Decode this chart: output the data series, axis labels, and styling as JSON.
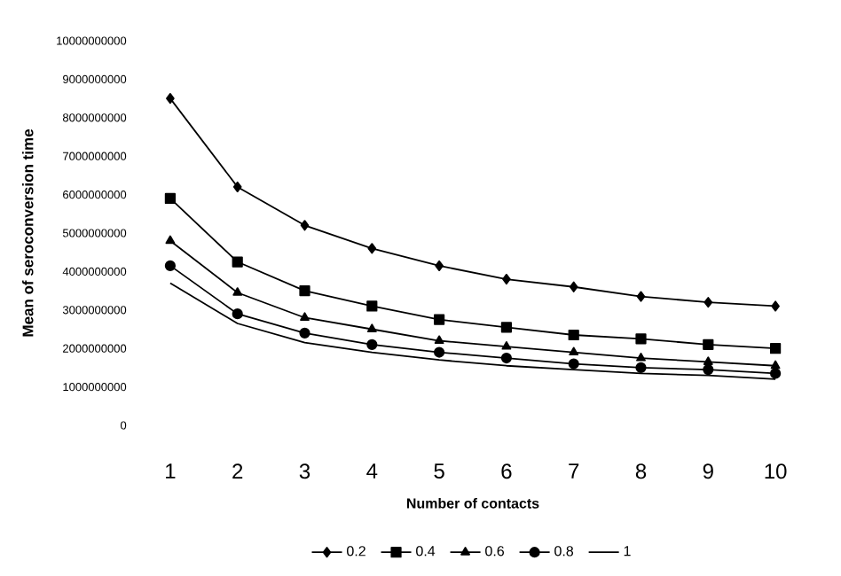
{
  "chart_data": {
    "type": "line",
    "xlabel": "Number of contacts",
    "ylabel": "Mean of seroconversion time",
    "categories": [
      "1",
      "2",
      "3",
      "4",
      "5",
      "6",
      "7",
      "8",
      "9",
      "10"
    ],
    "series": [
      {
        "name": "0.2",
        "color": "#000000",
        "marker": "diamond",
        "values": [
          8500000000,
          6200000000,
          5200000000,
          4600000000,
          4150000000,
          3800000000,
          3600000000,
          3350000000,
          3200000000,
          3100000000
        ]
      },
      {
        "name": "0.4",
        "color": "#000000",
        "marker": "square",
        "values": [
          5900000000,
          4250000000,
          3500000000,
          3100000000,
          2750000000,
          2550000000,
          2350000000,
          2250000000,
          2100000000,
          2000000000
        ]
      },
      {
        "name": "0.6",
        "color": "#000000",
        "marker": "triangle",
        "values": [
          4800000000,
          3450000000,
          2800000000,
          2500000000,
          2200000000,
          2050000000,
          1900000000,
          1750000000,
          1650000000,
          1550000000
        ]
      },
      {
        "name": "0.8",
        "color": "#000000",
        "marker": "circle",
        "values": [
          4150000000,
          2900000000,
          2400000000,
          2100000000,
          1900000000,
          1750000000,
          1600000000,
          1500000000,
          1450000000,
          1350000000
        ]
      },
      {
        "name": "1",
        "color": "#000000",
        "marker": "none",
        "values": [
          3700000000,
          2650000000,
          2150000000,
          1900000000,
          1700000000,
          1550000000,
          1450000000,
          1350000000,
          1300000000,
          1200000000
        ]
      }
    ],
    "ylim": [
      0,
      10000000000
    ],
    "yticks": [
      0,
      1000000000,
      2000000000,
      3000000000,
      4000000000,
      5000000000,
      6000000000,
      7000000000,
      8000000000,
      9000000000,
      10000000000
    ],
    "legend": "bottom",
    "grid": false,
    "line_style": "solid"
  }
}
